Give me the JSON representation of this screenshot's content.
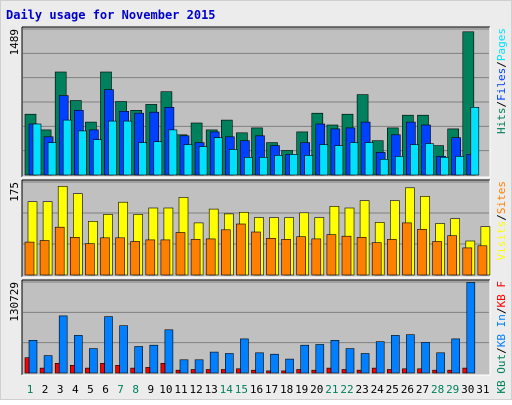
{
  "title": "Daily usage for November 2015",
  "colors": {
    "background": "#ececec",
    "border": "#d0d0d0",
    "plot": "#c0c0c0",
    "grid": "#808080",
    "title": "#0000cc",
    "hits": "#00805c",
    "files": "#0040ff",
    "pages": "#00e0ff",
    "visits": "#ffff00",
    "sites": "#ff8000",
    "kb_in": "#0080ff",
    "kb_out": "#00805c",
    "kb_f": "#ff0000",
    "weekday": "#000000",
    "weekend": "#00805c"
  },
  "right_labels": {
    "top": [
      {
        "text": "Hits",
        "color": "#00805c"
      },
      {
        "text": "/",
        "color": "#000000"
      },
      {
        "text": "Files",
        "color": "#0040ff"
      },
      {
        "text": "/",
        "color": "#000000"
      },
      {
        "text": "Pages",
        "color": "#00e0ff"
      }
    ],
    "middle": [
      {
        "text": "Visits",
        "color": "#ffff00"
      },
      {
        "text": "/",
        "color": "#000000"
      },
      {
        "text": "Sites",
        "color": "#ff8000"
      }
    ],
    "bottom": [
      {
        "text": "KB Out",
        "color": "#00805c"
      },
      {
        "text": "/",
        "color": "#000000"
      },
      {
        "text": "KB In",
        "color": "#0080ff"
      },
      {
        "text": "/",
        "color": "#000000"
      },
      {
        "text": "KB F",
        "color": "#ff0000"
      }
    ]
  },
  "chart_data": [
    {
      "type": "bar",
      "panel": "hits-files-pages",
      "ymax_label": "1489",
      "ylim": [
        0,
        1489
      ],
      "grid": true,
      "categories": [
        "1",
        "2",
        "3",
        "4",
        "5",
        "6",
        "7",
        "8",
        "9",
        "10",
        "11",
        "12",
        "13",
        "14",
        "15",
        "16",
        "17",
        "18",
        "19",
        "20",
        "21",
        "22",
        "23",
        "24",
        "25",
        "26",
        "27",
        "28",
        "29",
        "30",
        "31"
      ],
      "series": [
        {
          "name": "Hits",
          "values": [
            620,
            460,
            1050,
            760,
            540,
            1050,
            750,
            660,
            720,
            850,
            410,
            530,
            460,
            560,
            430,
            480,
            330,
            250,
            440,
            630,
            510,
            620,
            820,
            350,
            480,
            610,
            610,
            300,
            470,
            1460,
            0
          ]
        },
        {
          "name": "Files",
          "values": [
            520,
            390,
            810,
            660,
            460,
            870,
            650,
            630,
            640,
            690,
            400,
            330,
            440,
            390,
            350,
            400,
            300,
            210,
            330,
            520,
            470,
            480,
            540,
            230,
            410,
            540,
            510,
            190,
            380,
            210,
            0
          ]
        },
        {
          "name": "Pages",
          "values": [
            520,
            330,
            560,
            450,
            360,
            550,
            550,
            330,
            340,
            460,
            310,
            290,
            380,
            260,
            180,
            180,
            200,
            210,
            200,
            310,
            300,
            330,
            330,
            160,
            190,
            310,
            320,
            180,
            190,
            690,
            0
          ]
        }
      ]
    },
    {
      "type": "bar",
      "panel": "visits-sites",
      "ymax_label": "175",
      "ylim": [
        0,
        175
      ],
      "grid": true,
      "categories": [
        "1",
        "2",
        "3",
        "4",
        "5",
        "6",
        "7",
        "8",
        "9",
        "10",
        "11",
        "12",
        "13",
        "14",
        "15",
        "16",
        "17",
        "18",
        "19",
        "20",
        "21",
        "22",
        "23",
        "24",
        "25",
        "26",
        "27",
        "28",
        "29",
        "30",
        "31"
      ],
      "series": [
        {
          "name": "Visits",
          "values": [
            138,
            138,
            167,
            153,
            101,
            114,
            137,
            114,
            126,
            126,
            146,
            98,
            124,
            115,
            118,
            108,
            108,
            108,
            117,
            108,
            129,
            126,
            140,
            99,
            140,
            164,
            148,
            97,
            106,
            64,
            91
          ]
        },
        {
          "name": "Sites",
          "values": [
            62,
            65,
            90,
            71,
            59,
            70,
            70,
            63,
            66,
            66,
            80,
            67,
            68,
            85,
            96,
            81,
            69,
            67,
            72,
            68,
            76,
            73,
            71,
            61,
            67,
            98,
            86,
            63,
            74,
            51,
            55
          ]
        }
      ]
    },
    {
      "type": "bar",
      "panel": "kbin-kbout-kbf",
      "ymax_label": "130729",
      "ylim": [
        0,
        130729
      ],
      "grid": true,
      "categories": [
        "1",
        "2",
        "3",
        "4",
        "5",
        "6",
        "7",
        "8",
        "9",
        "10",
        "11",
        "12",
        "13",
        "14",
        "15",
        "16",
        "17",
        "18",
        "19",
        "20",
        "21",
        "22",
        "23",
        "24",
        "25",
        "26",
        "27",
        "28",
        "29",
        "30",
        "31"
      ],
      "series": [
        {
          "name": "KB In",
          "values": [
            47000,
            25000,
            82000,
            54000,
            35000,
            81000,
            68000,
            38000,
            40000,
            62000,
            19000,
            19000,
            30000,
            28000,
            49000,
            29000,
            27000,
            20000,
            40000,
            41000,
            47000,
            35000,
            28000,
            45000,
            54000,
            55000,
            44000,
            29000,
            49000,
            130000,
            0
          ]
        },
        {
          "name": "KB Out",
          "values": [
            0,
            0,
            0,
            0,
            0,
            0,
            0,
            0,
            0,
            0,
            0,
            0,
            0,
            0,
            0,
            0,
            0,
            0,
            0,
            0,
            0,
            0,
            0,
            0,
            0,
            0,
            0,
            0,
            0,
            0,
            0
          ]
        },
        {
          "name": "KB F",
          "values": [
            22000,
            7000,
            14000,
            11000,
            7000,
            14000,
            11000,
            7000,
            8000,
            14000,
            4000,
            5000,
            5000,
            5000,
            6000,
            4000,
            3000,
            3000,
            5000,
            4000,
            7000,
            5000,
            4000,
            7000,
            5000,
            6000,
            6000,
            4000,
            4000,
            7000,
            0
          ]
        }
      ]
    }
  ],
  "x_labels": [
    {
      "day": "1",
      "weekend": true
    },
    {
      "day": "2",
      "weekend": false
    },
    {
      "day": "3",
      "weekend": false
    },
    {
      "day": "4",
      "weekend": false
    },
    {
      "day": "5",
      "weekend": false
    },
    {
      "day": "6",
      "weekend": false
    },
    {
      "day": "7",
      "weekend": true
    },
    {
      "day": "8",
      "weekend": true
    },
    {
      "day": "9",
      "weekend": false
    },
    {
      "day": "10",
      "weekend": false
    },
    {
      "day": "11",
      "weekend": false
    },
    {
      "day": "12",
      "weekend": false
    },
    {
      "day": "13",
      "weekend": false
    },
    {
      "day": "14",
      "weekend": true
    },
    {
      "day": "15",
      "weekend": true
    },
    {
      "day": "16",
      "weekend": false
    },
    {
      "day": "17",
      "weekend": false
    },
    {
      "day": "18",
      "weekend": false
    },
    {
      "day": "19",
      "weekend": false
    },
    {
      "day": "20",
      "weekend": false
    },
    {
      "day": "21",
      "weekend": true
    },
    {
      "day": "22",
      "weekend": true
    },
    {
      "day": "23",
      "weekend": false
    },
    {
      "day": "24",
      "weekend": false
    },
    {
      "day": "25",
      "weekend": false
    },
    {
      "day": "26",
      "weekend": false
    },
    {
      "day": "27",
      "weekend": false
    },
    {
      "day": "28",
      "weekend": true
    },
    {
      "day": "29",
      "weekend": true
    },
    {
      "day": "30",
      "weekend": false
    },
    {
      "day": "31",
      "weekend": false
    }
  ]
}
